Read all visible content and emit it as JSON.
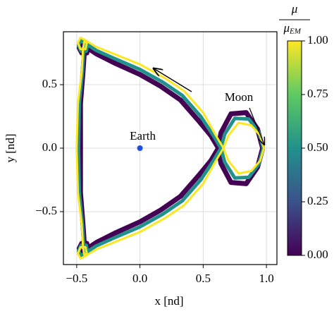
{
  "chart_data": {
    "type": "orbits",
    "xlabel": "x [nd]",
    "ylabel": "y [nd]",
    "xlim": [
      -0.605,
      1.083
    ],
    "ylim": [
      -0.917,
      0.917
    ],
    "xticks": [
      {
        "value": -0.5,
        "label": "−0.5"
      },
      {
        "value": 0,
        "label": "0.0"
      },
      {
        "value": 0.5,
        "label": "0.5"
      },
      {
        "value": 1,
        "label": "1.0"
      }
    ],
    "yticks": [
      {
        "value": -0.5,
        "label": "−0.5"
      },
      {
        "value": 0,
        "label": "0.0"
      },
      {
        "value": 0.5,
        "label": "0.5"
      }
    ],
    "grid": true,
    "series": [
      {
        "color": "#440154",
        "x": [
          0.97,
          0.93,
          0.84,
          0.72,
          0.64,
          0.62,
          0.56,
          0.46,
          0.32,
          0.16,
          0,
          -0.2,
          -0.34,
          -0.43,
          -0.47,
          -0.48,
          -0.46,
          -0.42,
          -0.41,
          -0.43,
          -0.44,
          -0.45,
          -0.47,
          -0.47,
          -0.47,
          -0.45,
          -0.44,
          -0.43,
          -0.41,
          -0.42,
          -0.46,
          -0.48,
          -0.47,
          -0.43,
          -0.34,
          -0.2,
          0,
          0.16,
          0.32,
          0.46,
          0.56,
          0.62,
          0.64,
          0.72,
          0.84,
          0.93,
          0.97
        ],
        "y": [
          0,
          -0.15,
          -0.28,
          -0.27,
          -0.12,
          0,
          0.1,
          0.22,
          0.38,
          0.49,
          0.58,
          0.67,
          0.74,
          0.8,
          0.83,
          0.79,
          0.75,
          0.75,
          0.8,
          0.81,
          0.75,
          0.6,
          0.35,
          0,
          -0.35,
          -0.6,
          -0.75,
          -0.81,
          -0.8,
          -0.75,
          -0.75,
          -0.79,
          -0.83,
          -0.8,
          -0.74,
          -0.67,
          -0.58,
          -0.49,
          -0.38,
          -0.22,
          -0.1,
          0,
          0.12,
          0.27,
          0.28,
          0.15,
          0
        ]
      },
      {
        "color": "#21918c",
        "x": [
          0.975,
          0.94,
          0.86,
          0.75,
          0.67,
          0.64,
          0.58,
          0.48,
          0.335,
          0.18,
          0,
          -0.2,
          -0.345,
          -0.43,
          -0.47,
          -0.485,
          -0.465,
          -0.425,
          -0.415,
          -0.435,
          -0.445,
          -0.455,
          -0.48,
          -0.485,
          -0.48,
          -0.455,
          -0.445,
          -0.435,
          -0.415,
          -0.425,
          -0.465,
          -0.485,
          -0.47,
          -0.43,
          -0.345,
          -0.2,
          0,
          0.18,
          0.335,
          0.48,
          0.58,
          0.64,
          0.67,
          0.75,
          0.86,
          0.94,
          0.975
        ],
        "y": [
          0,
          -0.125,
          -0.23,
          -0.235,
          -0.11,
          0,
          0.1,
          0.25,
          0.415,
          0.52,
          0.62,
          0.705,
          0.77,
          0.825,
          0.85,
          0.81,
          0.765,
          0.765,
          0.815,
          0.825,
          0.765,
          0.6,
          0.35,
          0,
          -0.35,
          -0.6,
          -0.765,
          -0.825,
          -0.815,
          -0.765,
          -0.765,
          -0.81,
          -0.85,
          -0.825,
          -0.77,
          -0.705,
          -0.62,
          -0.52,
          -0.415,
          -0.25,
          -0.1,
          0,
          0.11,
          0.235,
          0.23,
          0.125,
          0
        ]
      },
      {
        "color": "#fde725",
        "x": [
          0.98,
          0.95,
          0.88,
          0.78,
          0.7,
          0.66,
          0.6,
          0.5,
          0.35,
          0.2,
          0,
          -0.2,
          -0.35,
          -0.43,
          -0.47,
          -0.49,
          -0.47,
          -0.43,
          -0.42,
          -0.44,
          -0.45,
          -0.46,
          -0.49,
          -0.5,
          -0.49,
          -0.46,
          -0.45,
          -0.44,
          -0.42,
          -0.43,
          -0.47,
          -0.49,
          -0.47,
          -0.43,
          -0.35,
          -0.2,
          0,
          0.2,
          0.35,
          0.5,
          0.6,
          0.66,
          0.7,
          0.78,
          0.88,
          0.95,
          0.98
        ],
        "y": [
          0,
          -0.1,
          -0.18,
          -0.2,
          -0.1,
          0,
          0.1,
          0.28,
          0.45,
          0.55,
          0.66,
          0.74,
          0.8,
          0.85,
          0.87,
          0.83,
          0.78,
          0.78,
          0.83,
          0.84,
          0.78,
          0.6,
          0.35,
          0,
          -0.35,
          -0.6,
          -0.78,
          -0.84,
          -0.83,
          -0.78,
          -0.78,
          -0.83,
          -0.87,
          -0.85,
          -0.8,
          -0.74,
          -0.66,
          -0.55,
          -0.45,
          -0.28,
          -0.1,
          0,
          0.1,
          0.2,
          0.18,
          0.1,
          0
        ]
      }
    ],
    "points": [
      {
        "label": "Earth",
        "x": 0,
        "y": 0,
        "color": "#1f4fe0"
      }
    ],
    "moon_label": "Moon",
    "colorbar": {
      "label_numerator": "μ",
      "label_denominator": "μ",
      "label_denominator_subscript": "EM",
      "lim": [
        0,
        1
      ],
      "ticks": [
        {
          "value": 0,
          "label": "0.00"
        },
        {
          "value": 0.25,
          "label": "0.25"
        },
        {
          "value": 0.5,
          "label": "0.50"
        },
        {
          "value": 0.75,
          "label": "0.75"
        },
        {
          "value": 1,
          "label": "1.00"
        }
      ],
      "colormap": [
        "#440154",
        "#3b528b",
        "#21918c",
        "#5ec962",
        "#fde725"
      ]
    }
  }
}
